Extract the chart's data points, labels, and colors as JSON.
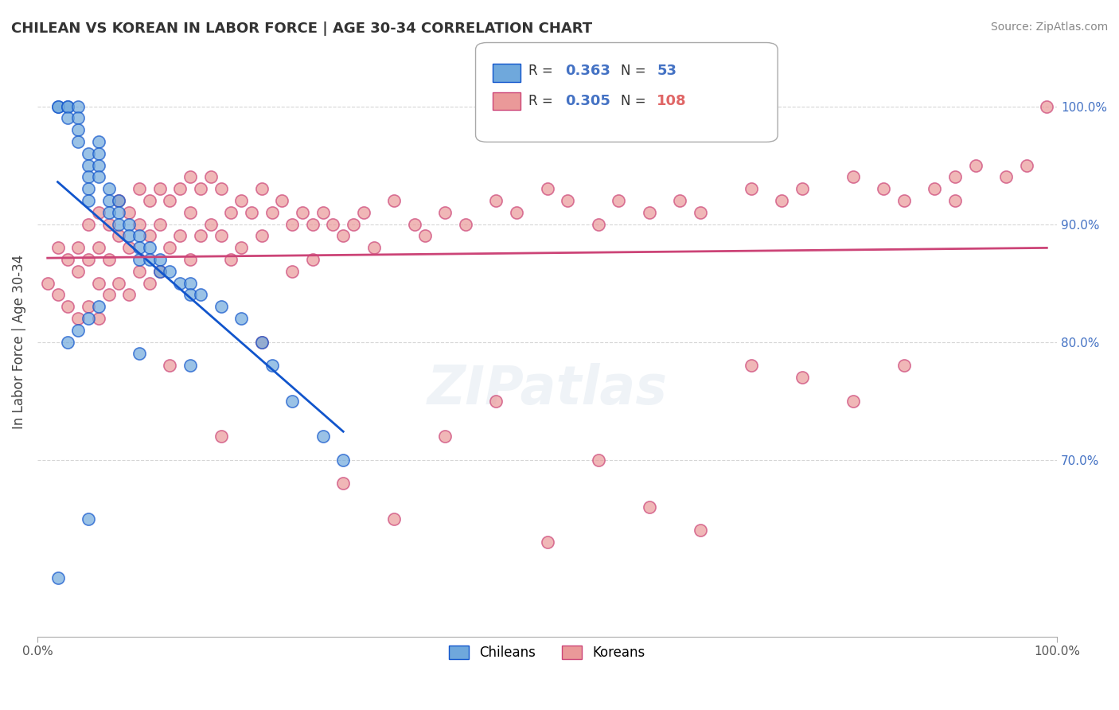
{
  "title": "CHILEAN VS KOREAN IN LABOR FORCE | AGE 30-34 CORRELATION CHART",
  "source": "Source: ZipAtlas.com",
  "xlabel": "",
  "ylabel": "In Labor Force | Age 30-34",
  "xlim": [
    0.0,
    1.0
  ],
  "ylim": [
    0.55,
    1.05
  ],
  "xticklabels": [
    "0.0%",
    "100.0%"
  ],
  "yticklabels": [
    "70.0%",
    "80.0%",
    "90.0%",
    "100.0%"
  ],
  "ytick_values": [
    0.7,
    0.8,
    0.9,
    1.0
  ],
  "chilean_color": "#6fa8dc",
  "korean_color": "#ea9999",
  "chilean_line_color": "#1155cc",
  "korean_line_color": "#cc4477",
  "legend_box_color": "#f0f0f0",
  "R_chilean": 0.363,
  "N_chilean": 53,
  "R_korean": 0.305,
  "N_korean": 108,
  "chilean_x": [
    0.02,
    0.02,
    0.03,
    0.03,
    0.03,
    0.04,
    0.04,
    0.04,
    0.04,
    0.05,
    0.05,
    0.05,
    0.05,
    0.05,
    0.06,
    0.06,
    0.06,
    0.06,
    0.07,
    0.07,
    0.07,
    0.08,
    0.08,
    0.08,
    0.09,
    0.09,
    0.1,
    0.1,
    0.1,
    0.11,
    0.11,
    0.12,
    0.12,
    0.13,
    0.14,
    0.15,
    0.15,
    0.16,
    0.18,
    0.2,
    0.22,
    0.23,
    0.25,
    0.28,
    0.3,
    0.06,
    0.05,
    0.04,
    0.03,
    0.1,
    0.15,
    0.02,
    0.05
  ],
  "chilean_y": [
    1.0,
    1.0,
    1.0,
    1.0,
    0.99,
    1.0,
    0.99,
    0.98,
    0.97,
    0.96,
    0.95,
    0.94,
    0.93,
    0.92,
    0.97,
    0.96,
    0.95,
    0.94,
    0.93,
    0.92,
    0.91,
    0.92,
    0.91,
    0.9,
    0.9,
    0.89,
    0.89,
    0.88,
    0.87,
    0.88,
    0.87,
    0.87,
    0.86,
    0.86,
    0.85,
    0.85,
    0.84,
    0.84,
    0.83,
    0.82,
    0.8,
    0.78,
    0.75,
    0.72,
    0.7,
    0.83,
    0.82,
    0.81,
    0.8,
    0.79,
    0.78,
    0.6,
    0.65
  ],
  "korean_x": [
    0.01,
    0.02,
    0.02,
    0.03,
    0.03,
    0.04,
    0.04,
    0.04,
    0.05,
    0.05,
    0.05,
    0.06,
    0.06,
    0.06,
    0.06,
    0.07,
    0.07,
    0.07,
    0.08,
    0.08,
    0.08,
    0.09,
    0.09,
    0.09,
    0.1,
    0.1,
    0.1,
    0.11,
    0.11,
    0.11,
    0.12,
    0.12,
    0.12,
    0.13,
    0.13,
    0.14,
    0.14,
    0.15,
    0.15,
    0.15,
    0.16,
    0.16,
    0.17,
    0.17,
    0.18,
    0.18,
    0.19,
    0.19,
    0.2,
    0.2,
    0.21,
    0.22,
    0.22,
    0.23,
    0.24,
    0.25,
    0.25,
    0.26,
    0.27,
    0.27,
    0.28,
    0.29,
    0.3,
    0.31,
    0.32,
    0.33,
    0.35,
    0.37,
    0.38,
    0.4,
    0.42,
    0.45,
    0.47,
    0.5,
    0.52,
    0.55,
    0.57,
    0.6,
    0.63,
    0.65,
    0.7,
    0.73,
    0.75,
    0.8,
    0.83,
    0.85,
    0.88,
    0.9,
    0.92,
    0.95,
    0.97,
    0.99,
    0.13,
    0.18,
    0.22,
    0.3,
    0.35,
    0.4,
    0.45,
    0.5,
    0.55,
    0.6,
    0.65,
    0.7,
    0.75,
    0.8,
    0.85,
    0.9
  ],
  "korean_y": [
    0.85,
    0.88,
    0.84,
    0.87,
    0.83,
    0.88,
    0.86,
    0.82,
    0.9,
    0.87,
    0.83,
    0.91,
    0.88,
    0.85,
    0.82,
    0.9,
    0.87,
    0.84,
    0.92,
    0.89,
    0.85,
    0.91,
    0.88,
    0.84,
    0.93,
    0.9,
    0.86,
    0.92,
    0.89,
    0.85,
    0.93,
    0.9,
    0.86,
    0.92,
    0.88,
    0.93,
    0.89,
    0.94,
    0.91,
    0.87,
    0.93,
    0.89,
    0.94,
    0.9,
    0.93,
    0.89,
    0.91,
    0.87,
    0.92,
    0.88,
    0.91,
    0.93,
    0.89,
    0.91,
    0.92,
    0.9,
    0.86,
    0.91,
    0.9,
    0.87,
    0.91,
    0.9,
    0.89,
    0.9,
    0.91,
    0.88,
    0.92,
    0.9,
    0.89,
    0.91,
    0.9,
    0.92,
    0.91,
    0.93,
    0.92,
    0.9,
    0.92,
    0.91,
    0.92,
    0.91,
    0.93,
    0.92,
    0.93,
    0.94,
    0.93,
    0.92,
    0.93,
    0.94,
    0.95,
    0.94,
    0.95,
    1.0,
    0.78,
    0.72,
    0.8,
    0.68,
    0.65,
    0.72,
    0.75,
    0.63,
    0.7,
    0.66,
    0.64,
    0.78,
    0.77,
    0.75,
    0.78,
    0.92
  ]
}
